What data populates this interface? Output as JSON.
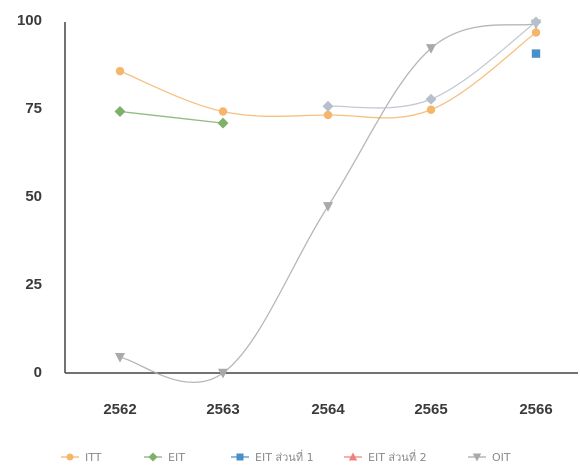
{
  "chart_data": {
    "type": "line",
    "categories": [
      "2562",
      "2563",
      "2564",
      "2565",
      "2566"
    ],
    "ylim": [
      0,
      100
    ],
    "yticks": [
      "0",
      "25",
      "50",
      "75",
      "100"
    ],
    "grid": false,
    "legend_position": "bottom",
    "series": [
      {
        "name": "ITT",
        "color": "#f5b56a",
        "marker": "circle",
        "values": [
          86,
          74.5,
          73.5,
          75,
          97
        ]
      },
      {
        "name": "EIT",
        "color": "#7fb069",
        "marker": "diamond",
        "values": [
          74.5,
          71.2,
          null,
          null,
          null
        ]
      },
      {
        "name": "EIT ส่วนที่ 1",
        "color": "#4a90c8",
        "marker": "square",
        "values": [
          null,
          null,
          null,
          null,
          91
        ]
      },
      {
        "name": "EIT ส่วนที่ 2",
        "color": "#f08080",
        "marker": "triangle-up",
        "values": [
          null,
          null,
          null,
          null,
          null
        ]
      },
      {
        "name": "OIT",
        "color": "#a9a9a9",
        "marker": "triangle-down",
        "values": [
          4.5,
          0,
          47.5,
          92.5,
          99.5
        ]
      },
      {
        "name": "",
        "color": "#b8bfcc",
        "marker": "diamond",
        "legend": false,
        "values": [
          null,
          null,
          76,
          78,
          100
        ]
      }
    ]
  }
}
